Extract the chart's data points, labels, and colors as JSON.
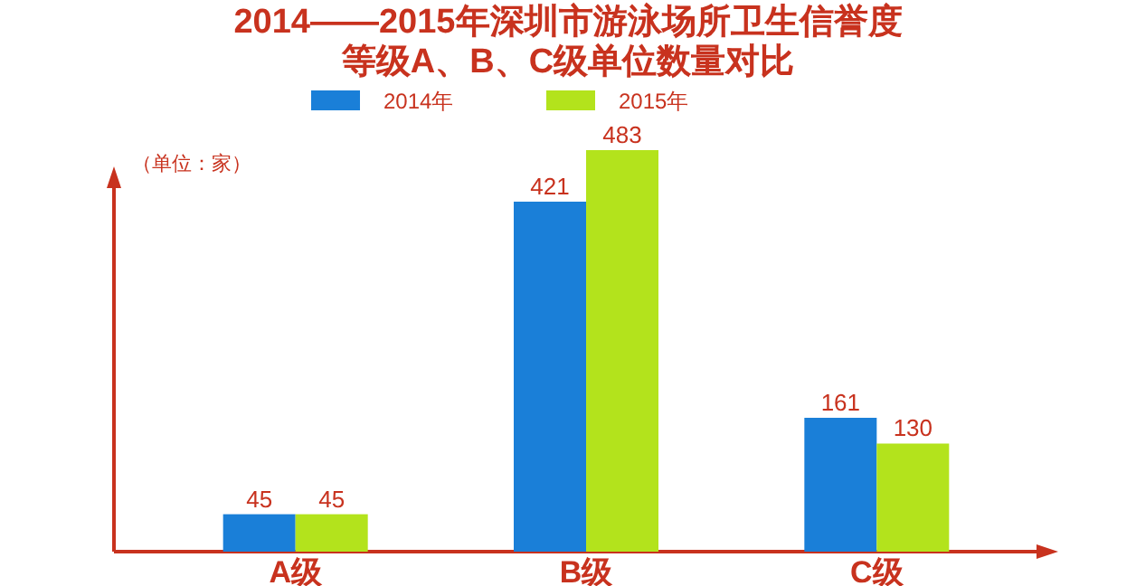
{
  "chart_data": {
    "type": "bar",
    "title": "2014——2015年深圳市游泳场所卫生信誉度",
    "subtitle": "等级A、B、C级单位数量对比",
    "ylabel": "（单位：家）",
    "categories": [
      "A级",
      "B级",
      "C级"
    ],
    "series": [
      {
        "name": "2014年",
        "color": "#1a7fd8",
        "values": [
          45,
          421,
          161
        ]
      },
      {
        "name": "2015年",
        "color": "#b3e31c",
        "values": [
          45,
          483,
          130
        ]
      }
    ],
    "data_labels": true,
    "legend": "top"
  }
}
